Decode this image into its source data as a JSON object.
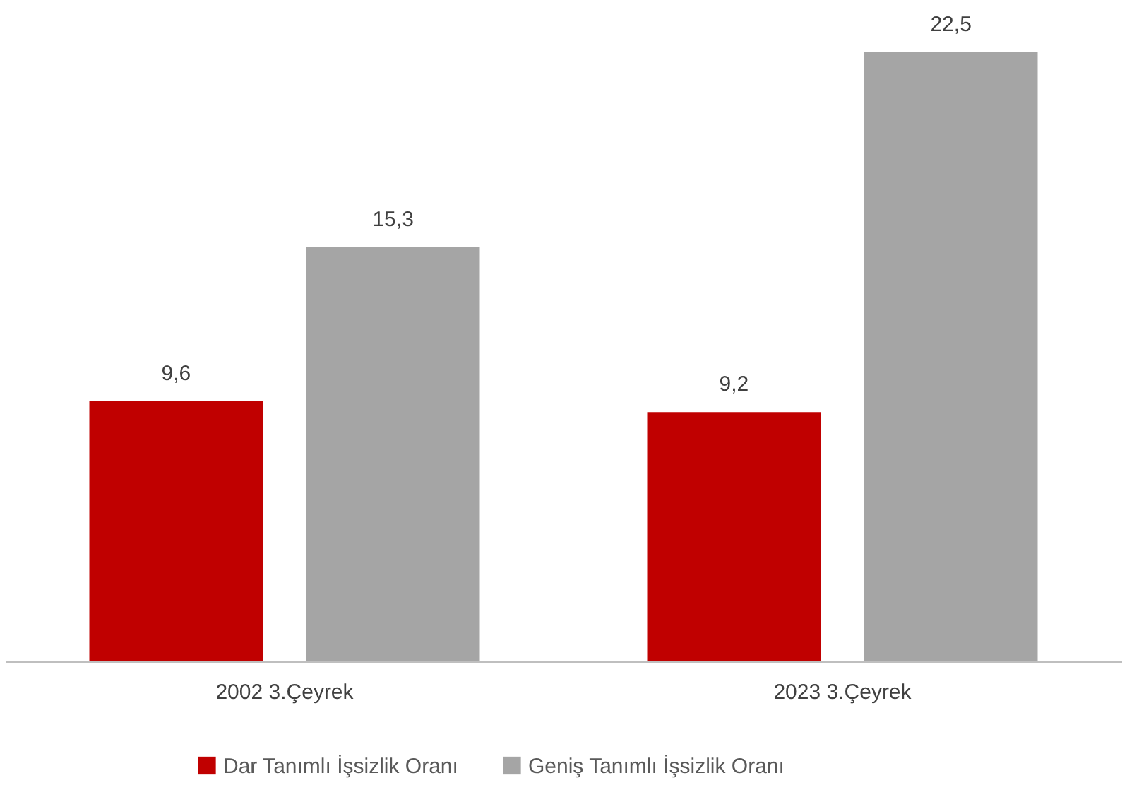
{
  "chart_data": {
    "type": "bar",
    "categories": [
      "2002 3.Çeyrek",
      "2023 3.Çeyrek"
    ],
    "series": [
      {
        "name": "Dar Tanımlı İşsizlik Oranı",
        "color": "#c00000",
        "values": [
          9.6,
          9.2
        ],
        "value_labels": [
          "9,6",
          "9,2"
        ]
      },
      {
        "name": "Geniş Tanımlı İşsizlik Oranı",
        "color": "#a5a5a5",
        "values": [
          15.3,
          22.5
        ],
        "value_labels": [
          "15,3",
          "22,5"
        ]
      }
    ],
    "legend": "bottom",
    "grid": false
  }
}
